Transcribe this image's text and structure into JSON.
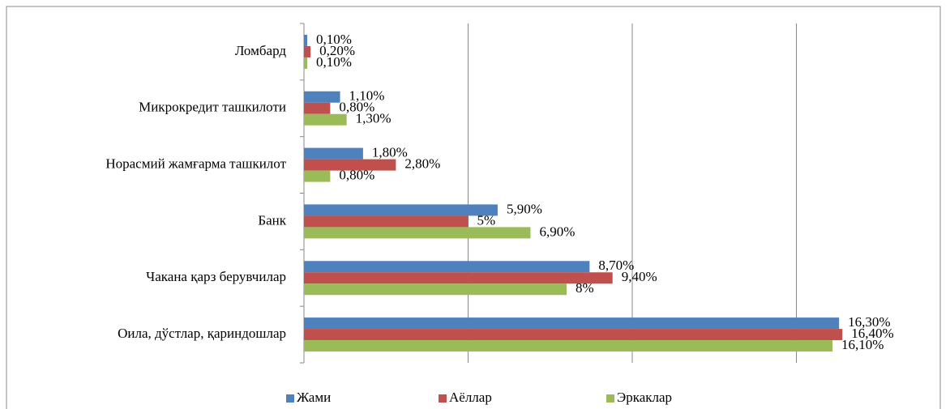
{
  "chart_data": {
    "type": "hbar",
    "categories": [
      "Ломбард",
      "Микрокредит ташкилоти",
      "Норасмий жамғарма ташкилот",
      "Банк",
      "Чакана қарз берувчилар",
      "Оила, дўстлар, қариндошлар"
    ],
    "series": [
      {
        "name": "Жами",
        "color": "#4f81bd",
        "values": [
          0.1,
          1.1,
          1.8,
          5.9,
          8.7,
          16.3
        ],
        "value_labels": [
          "0,10%",
          "1,10%",
          "1,80%",
          "5,90%",
          "8,70%",
          "16,30%"
        ]
      },
      {
        "name": "Аёллар",
        "color": "#c0504d",
        "values": [
          0.2,
          0.8,
          2.8,
          5,
          9.4,
          16.4
        ],
        "value_labels": [
          "0,20%",
          "0,80%",
          "2,80%",
          "5%",
          "9,40%",
          "16,40%"
        ]
      },
      {
        "name": "Эркаклар",
        "color": "#9bbb59",
        "values": [
          0.1,
          1.3,
          0.8,
          6.9,
          8,
          16.1
        ],
        "value_labels": [
          "0,10%",
          "1,30%",
          "0,80%",
          "6,90%",
          "8%",
          "16,10%"
        ]
      }
    ],
    "xlim": [
      0,
      20
    ],
    "xticks": [
      0,
      5,
      10,
      15
    ],
    "grid": true,
    "legend": "bottom"
  }
}
